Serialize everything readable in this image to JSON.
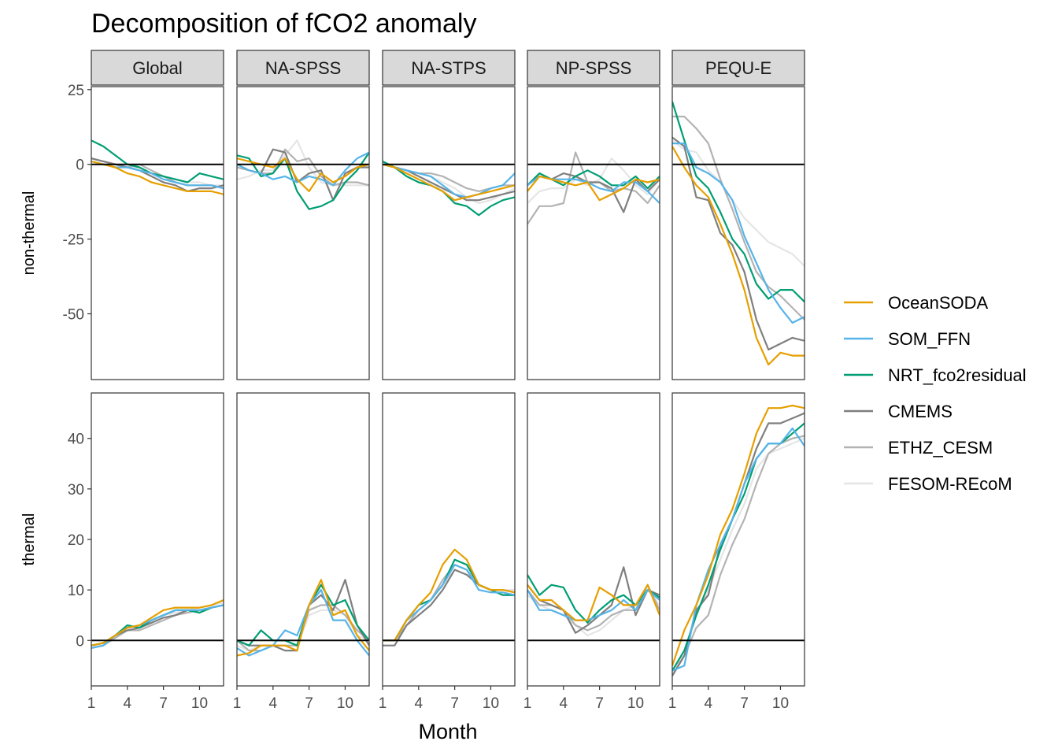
{
  "chart_data": {
    "type": "line",
    "title": "Decomposition of fCO2 anomaly",
    "xlabel": "Month",
    "x": [
      1,
      2,
      3,
      4,
      5,
      6,
      7,
      8,
      9,
      10,
      11,
      12
    ],
    "x_ticks": [
      1,
      4,
      7,
      10
    ],
    "xlim": [
      1,
      12
    ],
    "zero_line": true,
    "legend_position": "right",
    "panels": [
      "Global",
      "NA-SPSS",
      "NA-STPS",
      "NP-SPSS",
      "PEQU-E"
    ],
    "series_colors": {
      "OceanSODA": "#E69F00",
      "SOM_FFN": "#56B4E9",
      "NRT_fco2residual": "#009E73",
      "CMEMS": "#7f7f7f",
      "ETHZ_CESM": "#b3b3b3",
      "FESOM-REcoM": "#e5e5e5"
    },
    "rows": [
      {
        "label": "non-thermal",
        "ylim": [
          -72,
          26
        ],
        "y_ticks": [
          25,
          0,
          -25,
          -50
        ],
        "y_tick_labels": [
          "25",
          "0",
          "-25",
          "-50"
        ],
        "data": {
          "Global": {
            "OceanSODA": [
              1,
              0,
              -1,
              -3,
              -4,
              -6,
              -7,
              -8,
              -9,
              -9,
              -9,
              -10
            ],
            "SOM_FFN": [
              1,
              0,
              -1,
              -1,
              -2,
              -3,
              -5,
              -6,
              -7,
              -7,
              -7,
              -8
            ],
            "NRT_fco2residual": [
              8,
              6,
              3,
              0,
              -1,
              -3,
              -4,
              -5,
              -6,
              -3,
              -4,
              -5
            ],
            "CMEMS": [
              2,
              1,
              0,
              -1,
              -2,
              -4,
              -6,
              -7,
              -9,
              -8,
              -8,
              -7
            ],
            "ETHZ_CESM": [
              2,
              1,
              0,
              -1,
              0,
              -2,
              -4,
              -6,
              -7,
              -7,
              -7,
              -8
            ],
            "FESOM-REcoM": [
              2,
              1,
              0,
              -1,
              -1,
              -3,
              -4,
              -5,
              -6,
              -6,
              -7,
              -7
            ]
          },
          "NA-SPSS": {
            "OceanSODA": [
              2,
              1,
              0,
              -1,
              2,
              -5,
              -9,
              -3,
              -6,
              -4,
              -1,
              0
            ],
            "SOM_FFN": [
              0,
              -2,
              -3,
              -5,
              -4,
              -6,
              -4,
              -5,
              -7,
              -2,
              2,
              4
            ],
            "NRT_fco2residual": [
              3,
              2,
              -4,
              -3,
              2,
              -9,
              -15,
              -14,
              -12,
              -6,
              -2,
              4
            ],
            "CMEMS": [
              0,
              -2,
              -3,
              5,
              4,
              -6,
              -3,
              -2,
              -12,
              -3,
              -1,
              -1
            ],
            "ETHZ_CESM": [
              -1,
              -2,
              -3,
              -3,
              5,
              1,
              2,
              -4,
              -7,
              -6,
              -6,
              -7
            ],
            "FESOM-REcoM": [
              -5,
              -4,
              -2,
              -2,
              3,
              8,
              -1,
              -6,
              -7,
              -7,
              -7,
              -7
            ]
          },
          "NA-STPS": {
            "OceanSODA": [
              0,
              -1,
              -3,
              -5,
              -7,
              -9,
              -12,
              -11,
              -10,
              -9,
              -8,
              -7
            ],
            "SOM_FFN": [
              0,
              -1,
              -2,
              -3,
              -4,
              -7,
              -10,
              -11,
              -10,
              -8,
              -7,
              -3
            ],
            "NRT_fco2residual": [
              1,
              -1,
              -4,
              -6,
              -7,
              -9,
              -13,
              -14,
              -17,
              -14,
              -12,
              -11
            ],
            "CMEMS": [
              0,
              -1,
              -2,
              -4,
              -6,
              -8,
              -10,
              -12,
              -12,
              -11,
              -10,
              -9
            ],
            "ETHZ_CESM": [
              0,
              -1,
              -2,
              -3,
              -3,
              -4,
              -6,
              -8,
              -9,
              -8,
              -7,
              -7
            ],
            "FESOM-REcoM": [
              0,
              -1,
              -2,
              -3,
              -4,
              -6,
              -8,
              -11,
              -13,
              -12,
              -10,
              -8
            ]
          },
          "NP-SPSS": {
            "OceanSODA": [
              -9,
              -4,
              -5,
              -6,
              -7,
              -6,
              -12,
              -10,
              -8,
              -5,
              -6,
              -5
            ],
            "SOM_FFN": [
              -7,
              -4,
              -5,
              -5,
              -5,
              -6,
              -8,
              -9,
              -6,
              -6,
              -9,
              -13
            ],
            "NRT_fco2residual": [
              -7,
              -3,
              -5,
              -7,
              -4,
              -2,
              -4,
              -7,
              -7,
              -4,
              -8,
              -4
            ],
            "CMEMS": [
              -7,
              -3,
              -5,
              -3,
              -4,
              -6,
              -6,
              -8,
              -16,
              -5,
              -9,
              -5
            ],
            "ETHZ_CESM": [
              -20,
              -14,
              -14,
              -13,
              4,
              -6,
              -6,
              -9,
              -8,
              -9,
              -13,
              -7
            ],
            "FESOM-REcoM": [
              -13,
              -9,
              -8,
              -8,
              -5,
              -7,
              -5,
              2,
              -2,
              -7,
              -10,
              -5
            ]
          },
          "PEQU-E": {
            "OceanSODA": [
              6,
              -1,
              -7,
              -11,
              -20,
              -30,
              -42,
              -58,
              -67,
              -63,
              -64,
              -64
            ],
            "SOM_FFN": [
              7,
              7,
              -1,
              -3,
              -6,
              -12,
              -24,
              -33,
              -42,
              -48,
              -53,
              -51
            ],
            "NRT_fco2residual": [
              21,
              8,
              -4,
              -8,
              -16,
              -25,
              -30,
              -40,
              -45,
              -42,
              -42,
              -46
            ],
            "CMEMS": [
              9,
              6,
              -11,
              -12,
              -23,
              -27,
              -36,
              -52,
              -62,
              -60,
              -58,
              -59
            ],
            "ETHZ_CESM": [
              16,
              16,
              12,
              7,
              -5,
              -15,
              -26,
              -36,
              -41,
              -44,
              -48,
              -52
            ],
            "FESOM-REcoM": [
              8,
              5,
              4,
              -2,
              -6,
              -12,
              -18,
              -22,
              -26,
              -28,
              -30,
              -34
            ]
          }
        }
      },
      {
        "label": "thermal",
        "ylim": [
          -9,
          49
        ],
        "y_ticks": [
          40,
          30,
          20,
          10,
          0
        ],
        "y_tick_labels": [
          "40",
          "30",
          "20",
          "10",
          "0"
        ],
        "data": {
          "Global": {
            "OceanSODA": [
              -1,
              -0.5,
              1,
              2.5,
              3,
              4.5,
              6,
              6.5,
              6.5,
              6.5,
              7,
              8
            ],
            "SOM_FFN": [
              -1.5,
              -1,
              1,
              2.5,
              3,
              4,
              5,
              6,
              6,
              6,
              6.5,
              7
            ],
            "NRT_fco2residual": [
              -1,
              -0.5,
              1,
              3,
              2.5,
              4,
              5,
              6,
              6,
              5.5,
              6.5,
              7
            ],
            "CMEMS": [
              -1,
              -0.5,
              1,
              2,
              2.5,
              3.5,
              4.5,
              5,
              6,
              6,
              6.5,
              7
            ],
            "ETHZ_CESM": [
              -1.5,
              -1,
              0.5,
              2,
              2,
              3,
              4,
              5,
              5.5,
              6,
              6.5,
              7
            ],
            "FESOM-REcoM": [
              -1,
              -0.5,
              1,
              2.5,
              3,
              4,
              5,
              5.5,
              6,
              6.5,
              7,
              7.5
            ]
          },
          "NA-SPSS": {
            "OceanSODA": [
              -3,
              -2.5,
              -1,
              -1,
              -1,
              -2,
              7,
              12,
              5,
              6,
              1,
              -2
            ],
            "SOM_FFN": [
              -1.5,
              -3,
              -2,
              -1,
              2,
              1,
              7,
              10,
              4,
              4,
              0,
              -3
            ],
            "NRT_fco2residual": [
              0,
              -1,
              2,
              0,
              0,
              -1,
              7,
              11,
              7,
              8,
              3,
              0
            ],
            "CMEMS": [
              0,
              -1,
              -1,
              -1,
              -2,
              -2,
              7,
              9,
              6,
              12,
              3,
              -1
            ],
            "ETHZ_CESM": [
              0,
              -2,
              -2,
              -1,
              -1,
              -1,
              6,
              7,
              7,
              5,
              2,
              0
            ],
            "FESOM-REcoM": [
              -1,
              -2,
              -1,
              -1,
              -1,
              -1,
              5,
              6,
              6,
              5,
              1,
              0
            ]
          },
          "NA-STPS": {
            "OceanSODA": [
              0,
              0,
              4,
              7,
              9.5,
              15,
              18,
              16,
              11,
              10,
              10,
              9.5
            ],
            "SOM_FFN": [
              0,
              0,
              4,
              6,
              8,
              11,
              15,
              14,
              10,
              9.5,
              9.5,
              9
            ],
            "NRT_fco2residual": [
              0,
              0,
              4,
              7,
              8,
              11,
              16,
              15,
              11,
              10,
              9,
              9
            ],
            "CMEMS": [
              -1,
              -1,
              3,
              5,
              7,
              10,
              14,
              13,
              11,
              10,
              9,
              9
            ],
            "ETHZ_CESM": [
              0,
              0,
              3,
              6,
              8,
              12,
              15,
              14,
              11,
              10,
              10,
              9.5
            ],
            "FESOM-REcoM": [
              0,
              0,
              4,
              6,
              8,
              11,
              14,
              13,
              11,
              10,
              10,
              10
            ]
          },
          "NP-SPSS": {
            "OceanSODA": [
              11,
              8,
              8,
              6,
              4,
              4,
              10.5,
              9,
              7,
              7,
              11,
              5
            ],
            "SOM_FFN": [
              10,
              6,
              6,
              5,
              4,
              4,
              5,
              6,
              8,
              6,
              10,
              8
            ],
            "NRT_fco2residual": [
              13,
              9,
              11,
              10.5,
              6,
              3.5,
              6,
              8,
              9,
              7,
              10,
              8.5
            ],
            "CMEMS": [
              11,
              8,
              7,
              6,
              1.5,
              3,
              5,
              7,
              14.5,
              5,
              10,
              9
            ],
            "ETHZ_CESM": [
              10,
              7,
              7,
              6,
              3,
              2,
              3,
              5,
              6,
              6,
              11,
              6
            ],
            "FESOM-REcoM": [
              9,
              7,
              6,
              5,
              3,
              1,
              2,
              4,
              6,
              7,
              10,
              7
            ]
          },
          "PEQU-E": {
            "OceanSODA": [
              -5,
              2,
              7,
              13,
              21,
              26,
              33,
              41,
              46,
              46,
              46.5,
              46
            ],
            "SOM_FFN": [
              -6,
              -5,
              7,
              14,
              19,
              24,
              31,
              36,
              39,
              39,
              42,
              38.5
            ],
            "NRT_fco2residual": [
              -6,
              -2,
              5,
              11,
              18,
              24,
              29,
              36,
              39,
              39,
              41,
              43
            ],
            "CMEMS": [
              -7,
              -3,
              6,
              9,
              19,
              24,
              31,
              38,
              43,
              43,
              44,
              45
            ],
            "ETHZ_CESM": [
              -7,
              -3,
              2.5,
              5,
              13,
              19,
              24,
              31,
              37,
              39,
              40,
              40.5
            ],
            "FESOM-REcoM": [
              -6,
              -3,
              5,
              10,
              16,
              22,
              27,
              34,
              37,
              38,
              39,
              40
            ]
          }
        }
      }
    ]
  }
}
